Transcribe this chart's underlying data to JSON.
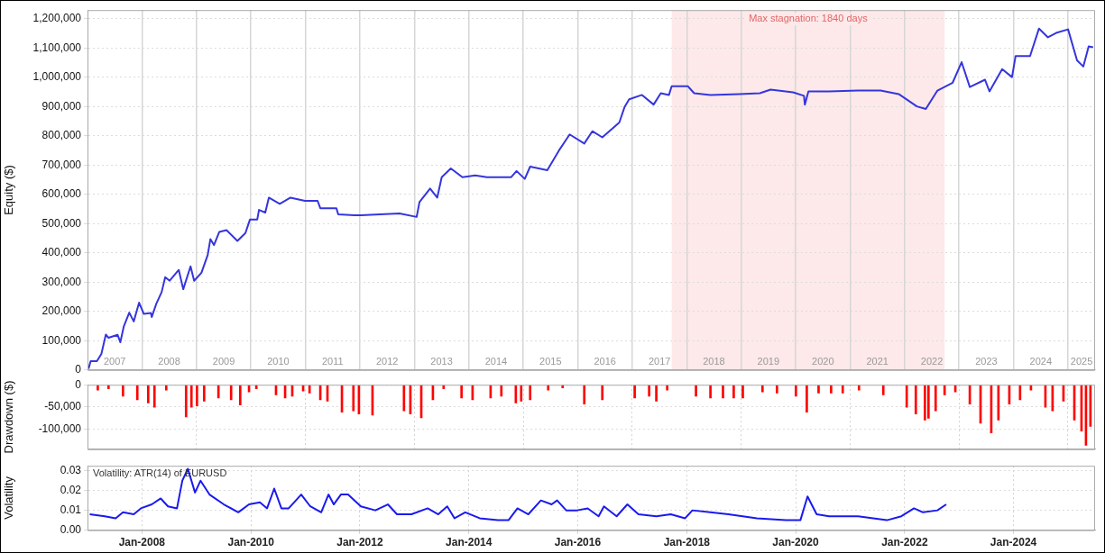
{
  "chart_data": [
    {
      "type": "line",
      "ylabel": "Equity ($)",
      "xlim": [
        "2007-01-01",
        "2025-07-01"
      ],
      "ylim": [
        0,
        1230000
      ],
      "xticks": [
        {
          "value": "2008-01-01",
          "label": null
        },
        {
          "value": "2009-01-01",
          "label": null
        },
        {
          "value": "2010-01-01",
          "label": null
        },
        {
          "value": "2011-01-01",
          "label": null
        },
        {
          "value": "2012-01-01",
          "label": null
        },
        {
          "value": "2013-01-01",
          "label": null
        },
        {
          "value": "2014-01-01",
          "label": null
        },
        {
          "value": "2015-01-01",
          "label": null
        },
        {
          "value": "2016-01-01",
          "label": null
        },
        {
          "value": "2017-01-01",
          "label": null
        },
        {
          "value": "2018-01-01",
          "label": null
        },
        {
          "value": "2019-01-01",
          "label": null
        },
        {
          "value": "2020-01-01",
          "label": null
        },
        {
          "value": "2021-01-01",
          "label": null
        },
        {
          "value": "2022-01-01",
          "label": null
        },
        {
          "value": "2023-01-01",
          "label": null
        },
        {
          "value": "2024-01-01",
          "label": null
        },
        {
          "value": "2025-01-01",
          "label": null
        }
      ],
      "yticks": [
        0,
        {
          "value": 100000,
          "label": "100,000"
        },
        {
          "value": 200000,
          "label": "200,000"
        },
        {
          "value": 300000,
          "label": "300,000"
        },
        {
          "value": 400000,
          "label": "400,000"
        },
        {
          "value": 500000,
          "label": "500,000"
        },
        {
          "value": 600000,
          "label": "600,000"
        },
        {
          "value": 700000,
          "label": "700,000"
        },
        {
          "value": 800000,
          "label": "800,000"
        },
        {
          "value": 900000,
          "label": "900,000"
        },
        {
          "value": 1000000,
          "label": "1,000,000"
        },
        {
          "value": 1100000,
          "label": "1,100,000"
        },
        {
          "value": 1200000,
          "label": "1,200,000"
        }
      ],
      "tick_labels": "y",
      "grid": true,
      "bands": [
        {
          "axis": "x",
          "from": "2017-09-22",
          "to": "2022-09-26",
          "label": "Max stagnation: 1840 days",
          "color": "#fde9e9"
        }
      ],
      "annotations": [
        "2007",
        "2008",
        "2009",
        "2010",
        "2011",
        "2012",
        "2013",
        "2014",
        "2015",
        "2016",
        "2017",
        "2018",
        "2019",
        "2020",
        "2021",
        "2022",
        "2023",
        "2024",
        "2025"
      ],
      "x": [
        "2007-01-08",
        "2007-01-22",
        "2007-03-05",
        "2007-04-04",
        "2007-05-04",
        "2007-05-22",
        "2007-07-22",
        "2007-08-09",
        "2007-09-02",
        "2007-10-08",
        "2007-11-07",
        "2007-12-13",
        "2008-01-13",
        "2008-03-01",
        "2008-03-07",
        "2008-04-06",
        "2008-05-12",
        "2008-06-05",
        "2008-07-05",
        "2008-09-04",
        "2008-10-04",
        "2008-11-22",
        "2008-12-16",
        "2009-02-03",
        "2009-03-17",
        "2009-04-04",
        "2009-04-28",
        "2009-06-03",
        "2009-07-21",
        "2009-10-02",
        "2009-11-25",
        "2009-12-25",
        "2010-02-12",
        "2010-02-24",
        "2010-04-07",
        "2010-05-01",
        "2010-07-13",
        "2010-09-23",
        "2010-12-29",
        "2011-03-24",
        "2011-04-11",
        "2011-07-28",
        "2011-08-09",
        "2011-11-25",
        "2012-01-08",
        "2012-09-23",
        "2013-01-16",
        "2013-02-04",
        "2013-04-16",
        "2013-06-03",
        "2013-07-03",
        "2013-09-02",
        "2013-11-19",
        "2014-02-13",
        "2014-05-02",
        "2014-10-12",
        "2014-11-17",
        "2015-01-11",
        "2015-02-16",
        "2015-06-11",
        "2015-08-28",
        "2015-11-08",
        "2016-02-14",
        "2016-04-08",
        "2016-06-14",
        "2016-10-06",
        "2016-11-11",
        "2016-12-11",
        "2017-03-07",
        "2017-05-24",
        "2017-07-11",
        "2017-09-04",
        "2017-09-22",
        "2018-01-08",
        "2018-02-20",
        "2018-06-08",
        "2018-12-18",
        "2019-05-06",
        "2019-07-17",
        "2019-12-15",
        "2020-02-26",
        "2020-03-03",
        "2020-03-27",
        "2020-08-13",
        "2021-02-23",
        "2021-07-24",
        "2021-11-22",
        "2022-03-24",
        "2022-05-23",
        "2022-08-09",
        "2022-11-19",
        "2023-01-18",
        "2023-03-14",
        "2023-06-24",
        "2023-07-24",
        "2023-10-17",
        "2023-12-22",
        "2024-01-15",
        "2024-04-21",
        "2024-06-20",
        "2024-08-19",
        "2024-10-13",
        "2025-01-01",
        "2025-03-02",
        "2025-04-13",
        "2025-05-19",
        "2025-06-18"
      ],
      "series": [
        {
          "color": "#3535dd",
          "values": [
            4000,
            30000,
            30000,
            55000,
            121000,
            110000,
            120000,
            95000,
            150000,
            196000,
            166000,
            230000,
            192000,
            195000,
            181000,
            226000,
            266000,
            317000,
            305000,
            342000,
            276000,
            354000,
            305000,
            332000,
            393000,
            447000,
            427000,
            472000,
            478000,
            441000,
            468000,
            514000,
            514000,
            547000,
            538000,
            589000,
            568000,
            589000,
            578000,
            578000,
            553000,
            553000,
            532000,
            529000,
            529000,
            535000,
            523000,
            574000,
            620000,
            589000,
            659000,
            689000,
            659000,
            665000,
            659000,
            659000,
            680000,
            653000,
            695000,
            683000,
            750000,
            805000,
            774000,
            816000,
            795000,
            846000,
            900000,
            925000,
            940000,
            907000,
            946000,
            940000,
            970000,
            970000,
            946000,
            940000,
            943000,
            946000,
            958000,
            949000,
            937000,
            907000,
            952000,
            952000,
            955000,
            955000,
            943000,
            901000,
            892000,
            955000,
            982000,
            1052000,
            967000,
            992000,
            952000,
            1028000,
            1001000,
            1073000,
            1073000,
            1167000,
            1137000,
            1152000,
            1164000,
            1058000,
            1037000,
            1106000,
            1103000
          ]
        }
      ]
    },
    {
      "type": "bar",
      "ylabel": "Drawdown ($)",
      "xlim": [
        "2007-01-01",
        "2025-07-01"
      ],
      "ylim": [
        -146000,
        0
      ],
      "xticks": [
        {
          "value": "2008-01-01",
          "label": null
        },
        {
          "value": "2010-01-01",
          "label": null
        },
        {
          "value": "2012-01-01",
          "label": null
        },
        {
          "value": "2014-01-01",
          "label": null
        },
        {
          "value": "2016-01-01",
          "label": null
        },
        {
          "value": "2018-01-01",
          "label": null
        },
        {
          "value": "2020-01-01",
          "label": null
        },
        {
          "value": "2022-01-01",
          "label": null
        },
        {
          "value": "2024-01-01",
          "label": null
        }
      ],
      "yticks": [
        {
          "value": -100000,
          "label": "-100,000"
        },
        {
          "value": -50000,
          "label": "-50,000"
        },
        0
      ],
      "tick_labels": "y",
      "grid": true,
      "x": [
        "2007-03-11",
        "2007-05-22",
        "2007-08-27",
        "2007-12-01",
        "2008-02-12",
        "2008-03-25",
        "2008-06-12",
        "2008-10-23",
        "2008-11-28",
        "2009-01-04",
        "2009-02-21",
        "2009-05-28",
        "2009-08-21",
        "2009-10-21",
        "2009-12-19",
        "2010-02-06",
        "2010-06-18",
        "2010-08-18",
        "2010-10-05",
        "2010-12-17",
        "2011-01-29",
        "2011-04-11",
        "2011-05-29",
        "2011-09-03",
        "2011-11-19",
        "2011-12-26",
        "2012-03-26",
        "2012-10-23",
        "2012-12-05",
        "2013-02-16",
        "2013-05-05",
        "2013-07-16",
        "2013-11-13",
        "2014-01-26",
        "2014-05-27",
        "2014-08-07",
        "2014-11-12",
        "2014-12-18",
        "2015-02-16",
        "2015-06-17",
        "2015-09-22",
        "2016-02-14",
        "2016-06-14",
        "2017-01-17",
        "2017-04-24",
        "2017-06-11",
        "2017-08-23",
        "2018-03-04",
        "2018-06-09",
        "2018-09-01",
        "2018-11-12",
        "2019-01-12",
        "2019-05-24",
        "2019-08-29",
        "2020-01-03",
        "2020-03-16",
        "2020-06-03",
        "2020-08-26",
        "2020-11-12",
        "2021-03-01",
        "2021-08-11",
        "2022-01-15",
        "2022-03-17",
        "2022-05-17",
        "2022-06-10",
        "2022-07-28",
        "2022-09-26",
        "2022-12-07",
        "2023-03-14",
        "2023-05-25",
        "2023-08-05",
        "2023-09-22",
        "2023-12-04",
        "2024-02-14",
        "2024-04-27",
        "2024-08-02",
        "2024-09-19",
        "2024-12-01",
        "2025-02-12",
        "2025-04-01",
        "2025-05-01",
        "2025-05-31"
      ],
      "series": [
        {
          "color": "#ff0000",
          "values": [
            -12000,
            -9000,
            -26000,
            -34000,
            -41000,
            -51000,
            -12000,
            -73000,
            -51000,
            -48000,
            -37000,
            -30000,
            -34000,
            -46000,
            -16000,
            -9000,
            -23000,
            -30000,
            -26000,
            -14000,
            -19000,
            -34000,
            -37000,
            -62000,
            -59000,
            -66000,
            -69000,
            -59000,
            -66000,
            -75000,
            -34000,
            -9000,
            -30000,
            -34000,
            -30000,
            -26000,
            -41000,
            -37000,
            -34000,
            -12000,
            -7000,
            -44000,
            -34000,
            -30000,
            -26000,
            -37000,
            -12000,
            -26000,
            -30000,
            -30000,
            -30000,
            -30000,
            -16000,
            -19000,
            -26000,
            -62000,
            -19000,
            -19000,
            -19000,
            -12000,
            -23000,
            -51000,
            -66000,
            -80000,
            -76000,
            -59000,
            -23000,
            -16000,
            -44000,
            -87000,
            -109000,
            -80000,
            -44000,
            -34000,
            -12000,
            -51000,
            -59000,
            -37000,
            -80000,
            -105000,
            -137000,
            -94000
          ]
        }
      ]
    },
    {
      "type": "line",
      "ylabel": "Volatility",
      "xlim": [
        "2007-01-01",
        "2025-07-01"
      ],
      "ylim": [
        0,
        0.0325
      ],
      "xticks": [
        {
          "value": "2008-01-01",
          "label": "Jan-2008"
        },
        {
          "value": "2010-01-01",
          "label": "Jan-2010"
        },
        {
          "value": "2012-01-01",
          "label": "Jan-2012"
        },
        {
          "value": "2014-01-01",
          "label": "Jan-2014"
        },
        {
          "value": "2016-01-01",
          "label": "Jan-2016"
        },
        {
          "value": "2018-01-01",
          "label": "Jan-2018"
        },
        {
          "value": "2020-01-01",
          "label": "Jan-2020"
        },
        {
          "value": "2022-01-01",
          "label": "Jan-2022"
        },
        {
          "value": "2024-01-01",
          "label": "Jan-2024"
        }
      ],
      "yticks": [
        {
          "value": 0,
          "label": "0.00"
        },
        {
          "value": 0.01,
          "label": "0.01"
        },
        {
          "value": 0.02,
          "label": "0.02"
        },
        {
          "value": 0.03,
          "label": "0.03"
        }
      ],
      "grid": true,
      "annotations": [
        "Volatility: ATR(14) of EURUSD"
      ],
      "x": [
        "2007-01-16",
        "2007-04-27",
        "2007-07-09",
        "2007-08-27",
        "2007-11-07",
        "2007-12-25",
        "2008-03-07",
        "2008-05-06",
        "2008-06-24",
        "2008-08-23",
        "2008-09-28",
        "2008-11-04",
        "2008-12-22",
        "2009-01-28",
        "2009-03-29",
        "2009-07-03",
        "2009-10-08",
        "2009-12-19",
        "2010-03-02",
        "2010-04-19",
        "2010-06-06",
        "2010-07-24",
        "2010-09-11",
        "2010-12-04",
        "2011-02-03",
        "2011-04-17",
        "2011-06-05",
        "2011-07-10",
        "2011-08-27",
        "2011-10-14",
        "2012-01-08",
        "2012-04-14",
        "2012-07-07",
        "2012-09-06",
        "2012-12-12",
        "2013-03-31",
        "2013-06-10",
        "2013-08-09",
        "2013-09-27",
        "2013-12-08",
        "2014-03-15",
        "2014-07-14",
        "2014-09-24",
        "2014-11-23",
        "2015-02-04",
        "2015-04-29",
        "2015-07-10",
        "2015-08-16",
        "2015-10-16",
        "2015-12-27",
        "2016-03-08",
        "2016-05-20",
        "2016-06-25",
        "2016-09-18",
        "2016-11-29",
        "2017-02-11",
        "2017-06-11",
        "2017-09-16",
        "2017-12-21",
        "2018-02-08",
        "2018-06-08",
        "2018-10-07",
        "2019-04-17",
        "2019-10-28",
        "2020-02-02",
        "2020-03-21",
        "2020-05-21",
        "2020-08-13",
        "2021-02-23",
        "2021-09-04",
        "2021-12-10",
        "2022-03-05",
        "2022-05-04",
        "2022-08-09",
        "2022-10-07"
      ],
      "series": [
        {
          "color": "#1a1aee",
          "values": [
            0.008,
            0.007,
            0.006,
            0.009,
            0.008,
            0.011,
            0.013,
            0.016,
            0.012,
            0.011,
            0.025,
            0.031,
            0.019,
            0.025,
            0.018,
            0.013,
            0.009,
            0.013,
            0.014,
            0.011,
            0.021,
            0.011,
            0.011,
            0.018,
            0.012,
            0.009,
            0.018,
            0.013,
            0.018,
            0.018,
            0.012,
            0.01,
            0.013,
            0.008,
            0.008,
            0.011,
            0.008,
            0.012,
            0.006,
            0.009,
            0.006,
            0.005,
            0.005,
            0.011,
            0.008,
            0.015,
            0.013,
            0.015,
            0.01,
            0.01,
            0.011,
            0.007,
            0.012,
            0.007,
            0.013,
            0.008,
            0.007,
            0.008,
            0.006,
            0.01,
            0.009,
            0.008,
            0.006,
            0.005,
            0.005,
            0.017,
            0.008,
            0.007,
            0.007,
            0.005,
            0.007,
            0.011,
            0.009,
            0.01,
            0.013
          ]
        }
      ]
    }
  ]
}
